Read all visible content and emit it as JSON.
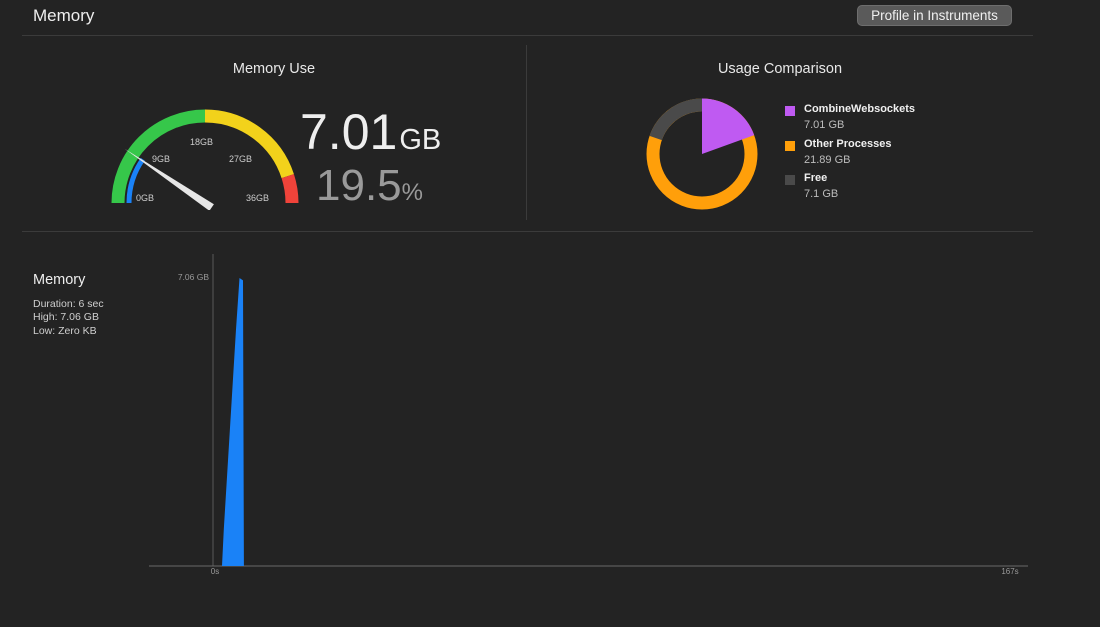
{
  "header": {
    "title": "Memory",
    "profile_button": "Profile in Instruments"
  },
  "memory_use": {
    "title": "Memory Use",
    "value": "7.01",
    "value_unit": "GB",
    "percent": "19.5",
    "percent_unit": "%",
    "fraction": 0.195,
    "gauge": {
      "scale_max_gb": 36,
      "ticks": [
        "0GB",
        "9GB",
        "18GB",
        "27GB",
        "36GB"
      ],
      "colors": {
        "green": "#36c74a",
        "yellow": "#f2d21b",
        "red": "#f0433a",
        "blue": "#1a82f7",
        "needle": "#e6e6e6"
      }
    }
  },
  "usage_comparison": {
    "title": "Usage Comparison",
    "items": [
      {
        "name": "CombineWebsockets",
        "value": "7.01 GB",
        "gb": 7.01,
        "color": "#bf5af2"
      },
      {
        "name": "Other Processes",
        "value": "21.89 GB",
        "gb": 21.89,
        "color": "#ff9f0a"
      },
      {
        "name": "Free",
        "value": "7.1 GB",
        "gb": 7.1,
        "color": "#4a4a4a"
      }
    ]
  },
  "memory_chart": {
    "title": "Memory",
    "stats": [
      "Duration: 6 sec",
      "High: 7.06 GB",
      "Low: Zero KB"
    ]
  },
  "chart_data": {
    "type": "area",
    "title": "",
    "x_unit": "s",
    "x": [
      0,
      0.4,
      0.5,
      1.2,
      1.4,
      1.6,
      1.65
    ],
    "y": [
      0,
      0,
      0.9,
      5.8,
      7.06,
      7.0,
      0
    ],
    "xlim": [
      0,
      167
    ],
    "ylim": [
      0,
      7.06
    ],
    "x_tick_labels": [
      "0s",
      "167s"
    ],
    "y_tick_labels": [
      "7.06 GB"
    ],
    "color": "#1a82f7",
    "grid": false,
    "legend": "none"
  }
}
